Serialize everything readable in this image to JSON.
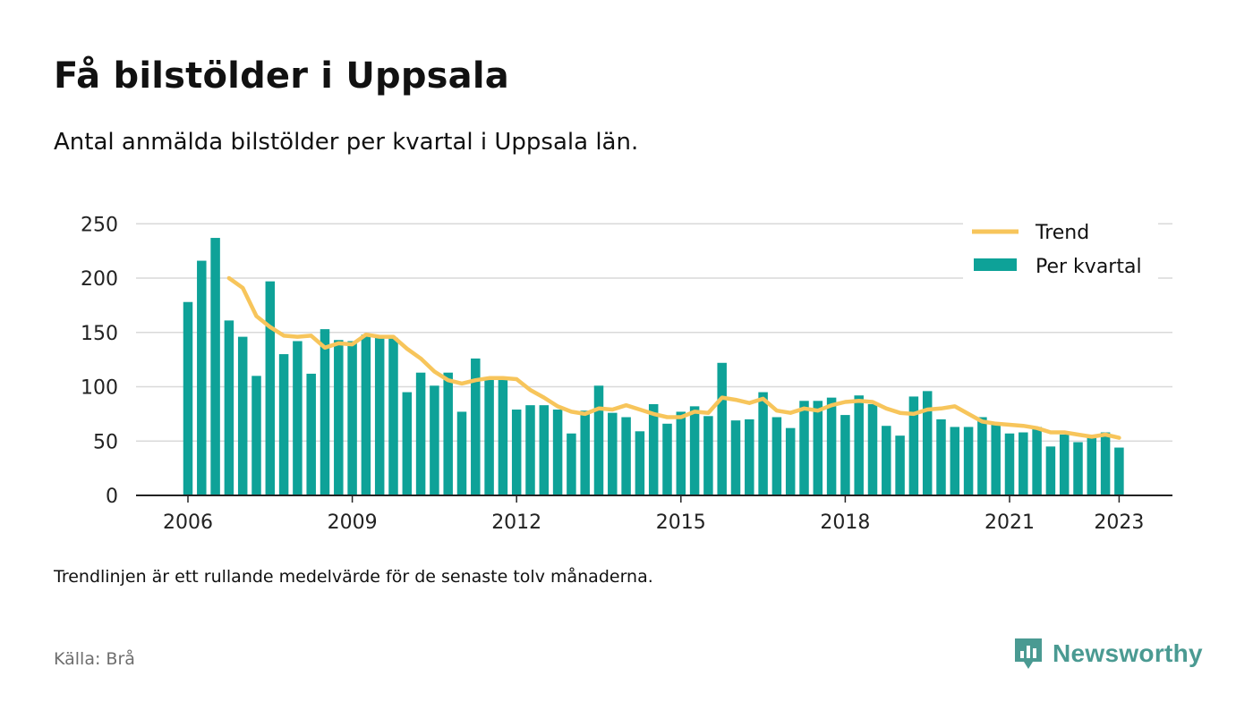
{
  "header": {
    "title": "Få bilstölder i Uppsala",
    "subtitle": "Antal anmälda bilstölder per kvartal i Uppsala län."
  },
  "footer": {
    "note": "Trendlinjen är ett rullande medelvärde för de senaste tolv månaderna.",
    "source": "Källa: Brå",
    "brand": "Newsworthy"
  },
  "colors": {
    "bar": "#0ea298",
    "trend": "#f7c55b",
    "axis": "#222222",
    "grid": "#d9d9d9",
    "brand": "#4a9a92"
  },
  "chart_data": {
    "type": "bar",
    "y_ticks": [
      0,
      50,
      100,
      150,
      200,
      250
    ],
    "x_ticks": [
      "2006",
      "2009",
      "2012",
      "2015",
      "2018",
      "2021",
      "2023"
    ],
    "ylim": [
      0,
      250
    ],
    "grid": true,
    "legend_position": "top-right",
    "categories": [
      "2006 Q1",
      "2006 Q2",
      "2006 Q3",
      "2006 Q4",
      "2007 Q1",
      "2007 Q2",
      "2007 Q3",
      "2007 Q4",
      "2008 Q1",
      "2008 Q2",
      "2008 Q3",
      "2008 Q4",
      "2009 Q1",
      "2009 Q2",
      "2009 Q3",
      "2009 Q4",
      "2010 Q1",
      "2010 Q2",
      "2010 Q3",
      "2010 Q4",
      "2011 Q1",
      "2011 Q2",
      "2011 Q3",
      "2011 Q4",
      "2012 Q1",
      "2012 Q2",
      "2012 Q3",
      "2012 Q4",
      "2013 Q1",
      "2013 Q2",
      "2013 Q3",
      "2013 Q4",
      "2014 Q1",
      "2014 Q2",
      "2014 Q3",
      "2014 Q4",
      "2015 Q1",
      "2015 Q2",
      "2015 Q3",
      "2015 Q4",
      "2016 Q1",
      "2016 Q2",
      "2016 Q3",
      "2016 Q4",
      "2017 Q1",
      "2017 Q2",
      "2017 Q3",
      "2017 Q4",
      "2018 Q1",
      "2018 Q2",
      "2018 Q3",
      "2018 Q4",
      "2019 Q1",
      "2019 Q2",
      "2019 Q3",
      "2019 Q4",
      "2020 Q1",
      "2020 Q2",
      "2020 Q3",
      "2020 Q4",
      "2021 Q1",
      "2021 Q2",
      "2021 Q3",
      "2021 Q4",
      "2022 Q1",
      "2022 Q2",
      "2022 Q3",
      "2022 Q4",
      "2023 Q1"
    ],
    "series": [
      {
        "name": "Per kvartal",
        "type": "bar",
        "values": [
          178,
          216,
          237,
          161,
          146,
          110,
          197,
          130,
          142,
          112,
          153,
          143,
          142,
          148,
          145,
          145,
          95,
          113,
          101,
          113,
          77,
          126,
          108,
          108,
          79,
          83,
          83,
          79,
          57,
          78,
          101,
          76,
          72,
          59,
          84,
          66,
          77,
          82,
          73,
          122,
          69,
          70,
          95,
          72,
          62,
          87,
          87,
          90,
          74,
          92,
          84,
          64,
          55,
          91,
          96,
          70,
          63,
          63,
          72,
          66,
          57,
          58,
          63,
          45,
          56,
          49,
          53,
          58,
          44
        ]
      },
      {
        "name": "Trend",
        "type": "line",
        "values": [
          null,
          null,
          null,
          200,
          191,
          165,
          155,
          147,
          146,
          147,
          136,
          140,
          139,
          148,
          146,
          146,
          135,
          126,
          114,
          106,
          103,
          106,
          108,
          108,
          107,
          97,
          90,
          82,
          77,
          75,
          80,
          79,
          83,
          79,
          75,
          72,
          72,
          77,
          76,
          90,
          88,
          85,
          89,
          78,
          76,
          80,
          78,
          83,
          86,
          87,
          86,
          80,
          76,
          75,
          79,
          80,
          82,
          75,
          68,
          66,
          65,
          64,
          62,
          58,
          58,
          56,
          54,
          56,
          53
        ]
      }
    ]
  }
}
